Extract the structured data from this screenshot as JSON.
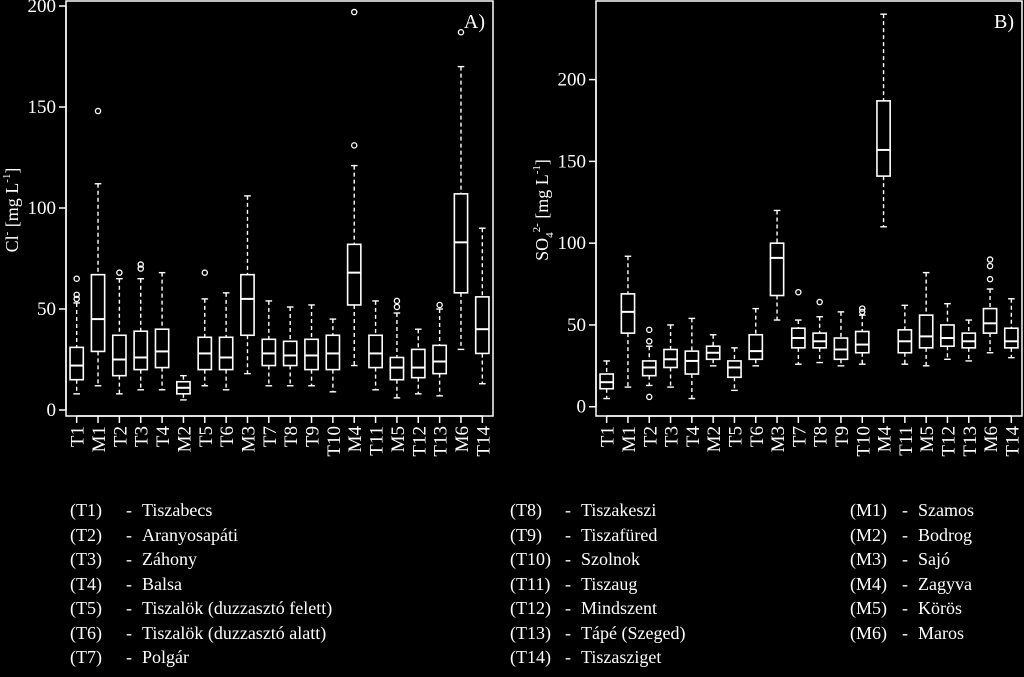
{
  "chart_data": [
    {
      "type": "boxplot",
      "panel_label": "A)",
      "ylabel_main": "Cl",
      "ylabel_sup": "-",
      "ylabel_unit_pre": "[mg L",
      "ylabel_unit_sup": "-1",
      "ylabel_unit_post": "]",
      "ylim": [
        0,
        200
      ],
      "yticks": [
        0,
        50,
        100,
        150,
        200
      ],
      "categories": [
        "T1",
        "M1",
        "T2",
        "T3",
        "T4",
        "M2",
        "T5",
        "T6",
        "M3",
        "T7",
        "T8",
        "T9",
        "T10",
        "M4",
        "T11",
        "M5",
        "T12",
        "T13",
        "M6",
        "T14"
      ],
      "boxes": [
        {
          "low": 8,
          "q1": 15,
          "med": 22,
          "q3": 31,
          "high": 53,
          "outliers": [
            55,
            57,
            65
          ]
        },
        {
          "low": 12,
          "q1": 29,
          "med": 45,
          "q3": 67,
          "high": 112,
          "outliers": [
            148
          ]
        },
        {
          "low": 8,
          "q1": 17,
          "med": 25,
          "q3": 37,
          "high": 65,
          "outliers": [
            68
          ]
        },
        {
          "low": 10,
          "q1": 20,
          "med": 26,
          "q3": 39,
          "high": 65,
          "outliers": [
            70,
            72
          ]
        },
        {
          "low": 10,
          "q1": 21,
          "med": 29,
          "q3": 40,
          "high": 68,
          "outliers": []
        },
        {
          "low": 5,
          "q1": 8,
          "med": 11,
          "q3": 14,
          "high": 17,
          "outliers": []
        },
        {
          "low": 12,
          "q1": 20,
          "med": 28,
          "q3": 36,
          "high": 55,
          "outliers": [
            68
          ]
        },
        {
          "low": 10,
          "q1": 20,
          "med": 26,
          "q3": 36,
          "high": 58,
          "outliers": []
        },
        {
          "low": 18,
          "q1": 37,
          "med": 55,
          "q3": 67,
          "high": 106,
          "outliers": []
        },
        {
          "low": 12,
          "q1": 22,
          "med": 28,
          "q3": 35,
          "high": 54,
          "outliers": []
        },
        {
          "low": 12,
          "q1": 22,
          "med": 27,
          "q3": 34,
          "high": 51,
          "outliers": []
        },
        {
          "low": 12,
          "q1": 20,
          "med": 27,
          "q3": 35,
          "high": 52,
          "outliers": []
        },
        {
          "low": 9,
          "q1": 20,
          "med": 28,
          "q3": 37,
          "high": 45,
          "outliers": []
        },
        {
          "low": 22,
          "q1": 52,
          "med": 68,
          "q3": 82,
          "high": 121,
          "outliers": [
            131,
            197
          ]
        },
        {
          "low": 10,
          "q1": 21,
          "med": 28,
          "q3": 37,
          "high": 54,
          "outliers": []
        },
        {
          "low": 6,
          "q1": 15,
          "med": 21,
          "q3": 26,
          "high": 48,
          "outliers": [
            51,
            54
          ]
        },
        {
          "low": 8,
          "q1": 16,
          "med": 21,
          "q3": 30,
          "high": 40,
          "outliers": []
        },
        {
          "low": 7,
          "q1": 18,
          "med": 24,
          "q3": 32,
          "high": 50,
          "outliers": [
            52
          ]
        },
        {
          "low": 30,
          "q1": 58,
          "med": 83,
          "q3": 107,
          "high": 170,
          "outliers": [
            187
          ]
        },
        {
          "low": 13,
          "q1": 28,
          "med": 40,
          "q3": 56,
          "high": 90,
          "outliers": []
        }
      ]
    },
    {
      "type": "boxplot",
      "panel_label": "B)",
      "ylabel_main": "SO",
      "ylabel_sub": "4",
      "ylabel_sup": "2-",
      "ylabel_unit_pre": "[mg L",
      "ylabel_unit_sup": "-1",
      "ylabel_unit_post": "]",
      "ylim": [
        -2,
        245
      ],
      "yticks": [
        0,
        50,
        100,
        150,
        200
      ],
      "categories": [
        "T1",
        "M1",
        "T2",
        "T3",
        "T4",
        "M2",
        "T5",
        "T6",
        "M3",
        "T7",
        "T8",
        "T9",
        "T10",
        "M4",
        "T11",
        "M5",
        "T12",
        "T13",
        "M6",
        "T14"
      ],
      "boxes": [
        {
          "low": 5,
          "q1": 11,
          "med": 15,
          "q3": 20,
          "high": 28,
          "outliers": []
        },
        {
          "low": 12,
          "q1": 45,
          "med": 58,
          "q3": 69,
          "high": 92,
          "outliers": []
        },
        {
          "low": 13,
          "q1": 19,
          "med": 24,
          "q3": 28,
          "high": 37,
          "outliers": [
            6,
            40,
            47
          ]
        },
        {
          "low": 12,
          "q1": 24,
          "med": 29,
          "q3": 35,
          "high": 50,
          "outliers": []
        },
        {
          "low": 5,
          "q1": 20,
          "med": 28,
          "q3": 34,
          "high": 54,
          "outliers": []
        },
        {
          "low": 25,
          "q1": 29,
          "med": 33,
          "q3": 37,
          "high": 44,
          "outliers": []
        },
        {
          "low": 10,
          "q1": 18,
          "med": 24,
          "q3": 28,
          "high": 36,
          "outliers": []
        },
        {
          "low": 25,
          "q1": 29,
          "med": 34,
          "q3": 44,
          "high": 60,
          "outliers": []
        },
        {
          "low": 53,
          "q1": 68,
          "med": 91,
          "q3": 100,
          "high": 120,
          "outliers": []
        },
        {
          "low": 26,
          "q1": 36,
          "med": 42,
          "q3": 48,
          "high": 53,
          "outliers": [
            70
          ]
        },
        {
          "low": 27,
          "q1": 36,
          "med": 40,
          "q3": 45,
          "high": 55,
          "outliers": [
            64
          ]
        },
        {
          "low": 25,
          "q1": 29,
          "med": 35,
          "q3": 42,
          "high": 58,
          "outliers": []
        },
        {
          "low": 26,
          "q1": 33,
          "med": 38,
          "q3": 46,
          "high": 56,
          "outliers": [
            58,
            60
          ]
        },
        {
          "low": 110,
          "q1": 141,
          "med": 157,
          "q3": 187,
          "high": 240,
          "outliers": []
        },
        {
          "low": 26,
          "q1": 33,
          "med": 40,
          "q3": 47,
          "high": 62,
          "outliers": []
        },
        {
          "low": 25,
          "q1": 36,
          "med": 43,
          "q3": 56,
          "high": 82,
          "outliers": []
        },
        {
          "low": 29,
          "q1": 37,
          "med": 42,
          "q3": 50,
          "high": 63,
          "outliers": []
        },
        {
          "low": 28,
          "q1": 36,
          "med": 40,
          "q3": 45,
          "high": 53,
          "outliers": []
        },
        {
          "low": 33,
          "q1": 45,
          "med": 51,
          "q3": 60,
          "high": 72,
          "outliers": [
            78,
            86,
            90
          ]
        },
        {
          "low": 30,
          "q1": 36,
          "med": 40,
          "q3": 48,
          "high": 66,
          "outliers": []
        }
      ]
    }
  ],
  "legend": {
    "col1": [
      {
        "code": "(T1)",
        "sep": "-",
        "name": "Tiszabecs"
      },
      {
        "code": "(T2)",
        "sep": "-",
        "name": "Aranyosapáti"
      },
      {
        "code": "(T3)",
        "sep": "-",
        "name": "Záhony"
      },
      {
        "code": "(T4)",
        "sep": "-",
        "name": "Balsa"
      },
      {
        "code": "(T5)",
        "sep": "-",
        "name": "Tiszalök (duzzasztó felett)"
      },
      {
        "code": "(T6)",
        "sep": "-",
        "name": "Tiszalök (duzzasztó alatt)"
      },
      {
        "code": "(T7)",
        "sep": "-",
        "name": "Polgár"
      }
    ],
    "col2": [
      {
        "code": "(T8)",
        "sep": "-",
        "name": "Tiszakeszi"
      },
      {
        "code": "(T9)",
        "sep": "-",
        "name": "Tiszafüred"
      },
      {
        "code": "(T10)",
        "sep": "-",
        "name": "Szolnok"
      },
      {
        "code": "(T11)",
        "sep": "-",
        "name": "Tiszaug"
      },
      {
        "code": "(T12)",
        "sep": "-",
        "name": "Mindszent"
      },
      {
        "code": "(T13)",
        "sep": "-",
        "name": "Tápé (Szeged)"
      },
      {
        "code": "(T14)",
        "sep": "-",
        "name": "Tiszasziget"
      }
    ],
    "col3": [
      {
        "code": "(M1)",
        "sep": "-",
        "name": "Szamos"
      },
      {
        "code": "(M2)",
        "sep": "-",
        "name": "Bodrog"
      },
      {
        "code": "(M3)",
        "sep": "-",
        "name": "Sajó"
      },
      {
        "code": "(M4)",
        "sep": "-",
        "name": "Zagyva"
      },
      {
        "code": "(M5)",
        "sep": "-",
        "name": "Körös"
      },
      {
        "code": "(M6)",
        "sep": "-",
        "name": "Maros"
      }
    ]
  }
}
